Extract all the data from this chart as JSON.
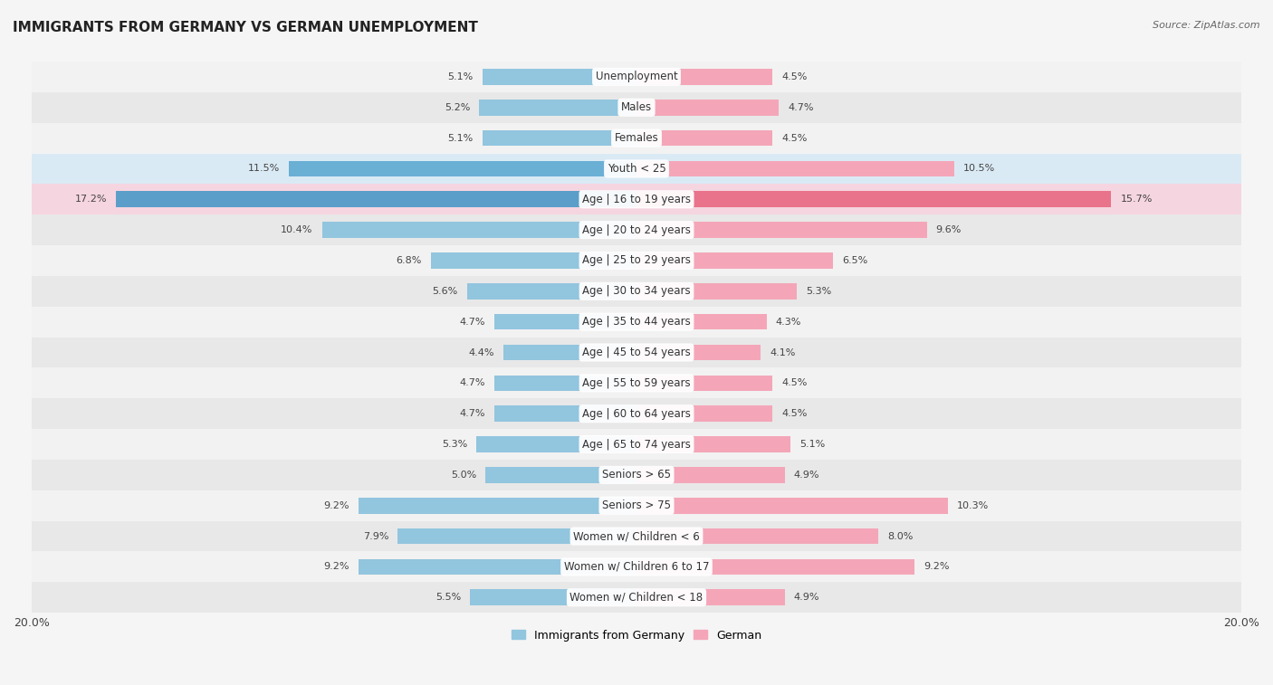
{
  "title": "IMMIGRANTS FROM GERMANY VS GERMAN UNEMPLOYMENT",
  "source": "Source: ZipAtlas.com",
  "categories": [
    "Unemployment",
    "Males",
    "Females",
    "Youth < 25",
    "Age | 16 to 19 years",
    "Age | 20 to 24 years",
    "Age | 25 to 29 years",
    "Age | 30 to 34 years",
    "Age | 35 to 44 years",
    "Age | 45 to 54 years",
    "Age | 55 to 59 years",
    "Age | 60 to 64 years",
    "Age | 65 to 74 years",
    "Seniors > 65",
    "Seniors > 75",
    "Women w/ Children < 6",
    "Women w/ Children 6 to 17",
    "Women w/ Children < 18"
  ],
  "left_values": [
    5.1,
    5.2,
    5.1,
    11.5,
    17.2,
    10.4,
    6.8,
    5.6,
    4.7,
    4.4,
    4.7,
    4.7,
    5.3,
    5.0,
    9.2,
    7.9,
    9.2,
    5.5
  ],
  "right_values": [
    4.5,
    4.7,
    4.5,
    10.5,
    15.7,
    9.6,
    6.5,
    5.3,
    4.3,
    4.1,
    4.5,
    4.5,
    5.1,
    4.9,
    10.3,
    8.0,
    9.2,
    4.9
  ],
  "left_color_normal": "#92c5de",
  "right_color_normal": "#f4a6b8",
  "left_color_highlight1": "#6aafd4",
  "right_color_highlight1": "#f4a6b8",
  "left_color_highlight2": "#5b9ec9",
  "right_color_highlight2": "#e8738a",
  "highlight_rows": [
    3,
    4
  ],
  "row_bg_light": "#f2f2f2",
  "row_bg_dark": "#e8e8e8",
  "row_bg_highlight3": "#daeaf5",
  "row_bg_highlight4": "#f5d5e0",
  "bg_color": "#f5f5f5",
  "xlim": 20.0,
  "legend_left": "Immigrants from Germany",
  "legend_right": "German",
  "bar_height": 0.52
}
